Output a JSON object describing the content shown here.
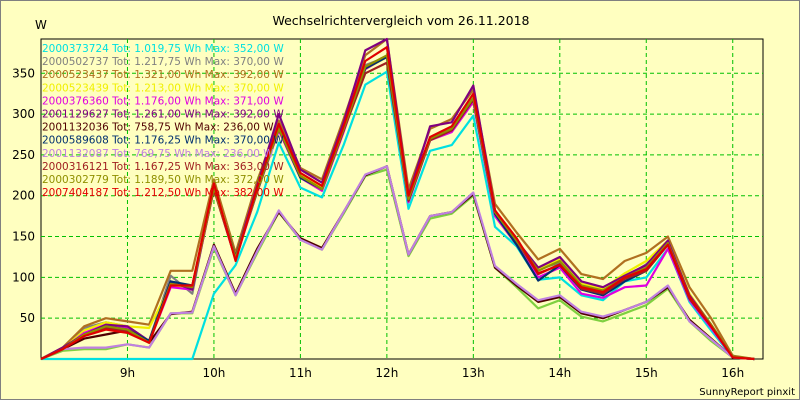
{
  "chart_data": {
    "type": "line",
    "title": "Wechselrichtervergleich vom 26.11.2018",
    "ylabel": "W",
    "footer": "SunnyReport pinxit",
    "ylim": [
      0,
      392
    ],
    "grid": true,
    "y_ticks": [
      50,
      100,
      150,
      200,
      250,
      300,
      350
    ],
    "x_tick_labels": [
      "9h",
      "10h",
      "11h",
      "12h",
      "13h",
      "14h",
      "15h",
      "16h"
    ],
    "x_tick_hours": [
      9,
      10,
      11,
      12,
      13,
      14,
      15,
      16
    ],
    "x_range_hours": [
      8.0,
      16.35
    ],
    "x": [
      8.0,
      8.25,
      8.5,
      8.75,
      9.0,
      9.25,
      9.5,
      9.75,
      10.0,
      10.25,
      10.5,
      10.75,
      11.0,
      11.25,
      11.5,
      11.75,
      12.0,
      12.25,
      12.5,
      12.75,
      13.0,
      13.25,
      13.5,
      13.75,
      14.0,
      14.25,
      14.5,
      14.75,
      15.0,
      15.25,
      15.5,
      15.75,
      16.0,
      16.25
    ],
    "legend_placement": "top-left",
    "series": [
      {
        "label": "2000373724 Tot: 1.019,75 Wh Max: 352,00 W",
        "color": "#00e0e0",
        "values": [
          0,
          0,
          0,
          0,
          0,
          0,
          0,
          0,
          80,
          115,
          180,
          265,
          210,
          198,
          262,
          336,
          352,
          184,
          255,
          262,
          298,
          162,
          138,
          97,
          100,
          78,
          72,
          95,
          100,
          135,
          70,
          35,
          2,
          0
        ]
      },
      {
        "label": "2000502737 Tot: 1.217,75 Wh Max: 370,00 W",
        "color": "#808080",
        "values": [
          0,
          12,
          38,
          45,
          40,
          22,
          102,
          80,
          215,
          128,
          210,
          284,
          226,
          210,
          282,
          360,
          370,
          196,
          270,
          282,
          318,
          178,
          142,
          110,
          118,
          92,
          85,
          100,
          116,
          142,
          78,
          42,
          3,
          0
        ]
      },
      {
        "label": "2000523437 Tot: 1.321,00 Wh Max: 392,00 W",
        "color": "#b07020",
        "values": [
          0,
          14,
          40,
          50,
          46,
          42,
          108,
          108,
          220,
          130,
          218,
          292,
          234,
          220,
          294,
          372,
          392,
          208,
          282,
          294,
          330,
          190,
          155,
          122,
          135,
          104,
          98,
          120,
          130,
          150,
          88,
          50,
          4,
          0
        ]
      },
      {
        "label": "2000523439 Tot: 1.213,00 Wh Max: 370,00 W",
        "color": "#f0f000",
        "values": [
          0,
          12,
          35,
          45,
          40,
          38,
          90,
          88,
          212,
          125,
          205,
          282,
          226,
          210,
          282,
          355,
          370,
          195,
          270,
          280,
          315,
          175,
          140,
          110,
          122,
          92,
          86,
          105,
          120,
          145,
          80,
          42,
          3,
          0
        ]
      },
      {
        "label": "2000376360 Tot: 1.176,00 Wh Max: 371,00 W",
        "color": "#e000e0",
        "values": [
          0,
          12,
          32,
          42,
          38,
          20,
          88,
          85,
          208,
          122,
          205,
          280,
          222,
          206,
          278,
          355,
          371,
          192,
          268,
          278,
          315,
          175,
          140,
          100,
          112,
          80,
          75,
          88,
          90,
          135,
          72,
          38,
          2,
          0
        ]
      },
      {
        "label": "2001129627 Tot: 1.261,00 Wh Max: 392,00 W",
        "color": "#800080",
        "values": [
          0,
          14,
          30,
          42,
          40,
          22,
          95,
          85,
          210,
          125,
          212,
          300,
          232,
          216,
          290,
          378,
          392,
          200,
          285,
          290,
          335,
          182,
          145,
          112,
          125,
          95,
          88,
          102,
          115,
          145,
          78,
          42,
          3,
          0
        ]
      },
      {
        "label": "2001132036 Tot: 758,75 Wh Max: 236,00 W",
        "color": "#500000",
        "values": [
          0,
          12,
          25,
          30,
          35,
          20,
          55,
          58,
          140,
          80,
          135,
          180,
          148,
          136,
          180,
          225,
          236,
          128,
          175,
          180,
          202,
          112,
          90,
          70,
          76,
          56,
          50,
          60,
          70,
          88,
          48,
          25,
          2,
          0
        ]
      },
      {
        "label": "2000589608 Tot: 1.176,25 Wh Max: 370,00 W",
        "color": "#003070",
        "values": [
          0,
          12,
          30,
          40,
          36,
          22,
          95,
          90,
          210,
          125,
          205,
          282,
          222,
          208,
          280,
          356,
          370,
          194,
          270,
          280,
          318,
          178,
          140,
          96,
          115,
          85,
          78,
          95,
          108,
          140,
          74,
          40,
          2,
          0
        ]
      },
      {
        "label": "2001132087 Tot: 769,75 Wh Max: 236,00 W",
        "color": "#c080e0",
        "values": [
          0,
          12,
          14,
          14,
          18,
          14,
          56,
          57,
          138,
          78,
          132,
          182,
          146,
          134,
          180,
          226,
          236,
          128,
          175,
          180,
          204,
          114,
          92,
          72,
          78,
          58,
          52,
          60,
          70,
          90,
          46,
          24,
          2,
          0
        ]
      },
      {
        "label": "2000316121 Tot: 1.167,25 Wh Max: 363,00 W",
        "color": "#a02020",
        "values": [
          0,
          12,
          30,
          38,
          34,
          20,
          92,
          88,
          208,
          122,
          208,
          282,
          224,
          208,
          280,
          350,
          363,
          194,
          268,
          280,
          318,
          180,
          145,
          104,
          116,
          86,
          80,
          98,
          108,
          140,
          74,
          40,
          2,
          0
        ]
      },
      {
        "label": "2000302779 Tot: 1.189,50 Wh Max: 372,00 W",
        "color": "#909000",
        "values": [
          0,
          12,
          30,
          40,
          36,
          20,
          92,
          88,
          210,
          124,
          206,
          282,
          224,
          208,
          282,
          358,
          372,
          196,
          270,
          282,
          320,
          180,
          145,
          108,
          120,
          90,
          84,
          100,
          112,
          142,
          76,
          42,
          3,
          0
        ]
      },
      {
        "label": "2007404187 Tot: 1.212,50 Wh Max: 382,00 W",
        "color": "#e00000",
        "values": [
          0,
          12,
          28,
          36,
          32,
          20,
          90,
          90,
          215,
          120,
          210,
          288,
          228,
          212,
          285,
          365,
          382,
          200,
          272,
          285,
          325,
          182,
          148,
          105,
          115,
          88,
          82,
          100,
          110,
          140,
          76,
          40,
          2,
          0
        ]
      }
    ],
    "extra_line": {
      "color": "#7fd040",
      "values": [
        0,
        10,
        12,
        12,
        18,
        14,
        56,
        56,
        136,
        78,
        130,
        180,
        146,
        134,
        178,
        224,
        232,
        126,
        172,
        178,
        200,
        112,
        88,
        62,
        72,
        52,
        46,
        56,
        66,
        86,
        46,
        22,
        2,
        0
      ]
    }
  }
}
